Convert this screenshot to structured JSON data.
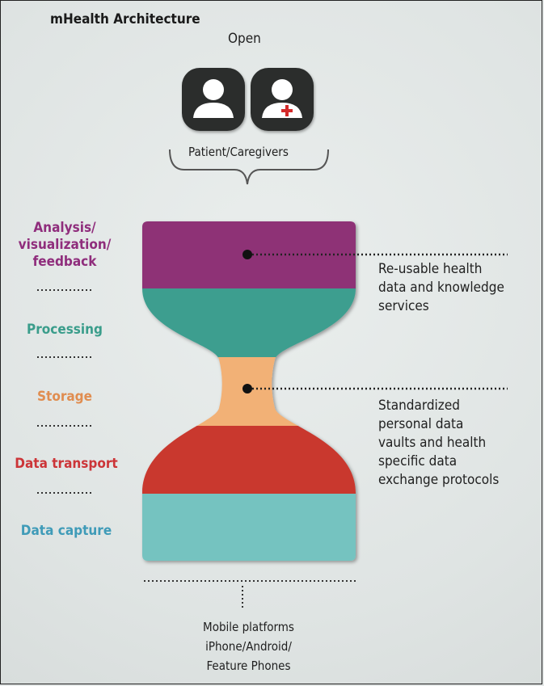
{
  "header": {
    "title": "mHealth Architecture",
    "open_label": "Open",
    "users_label": "Patient/Caregivers"
  },
  "icons": [
    "patient-icon",
    "caregiver-icon"
  ],
  "layers": [
    {
      "lines": [
        "Analysis/",
        "visualization/",
        "feedback"
      ],
      "color": "#8f2d7c"
    },
    {
      "lines": [
        "Processing"
      ],
      "color": "#3a9d8b"
    },
    {
      "lines": [
        "Storage"
      ],
      "color": "#e08d50"
    },
    {
      "lines": [
        "Data transport"
      ],
      "color": "#cc3538"
    },
    {
      "lines": [
        "Data capture"
      ],
      "color": "#3f9bb8"
    }
  ],
  "layer_fill_colors": {
    "analysis": "#8e3076",
    "processing": "#3e9e8f",
    "storage": "#f2b176",
    "transport": "#c9382e",
    "capture": "#74c3c0"
  },
  "annotations": {
    "services": [
      "Re-usable health",
      "data and knowledge",
      "services"
    ],
    "vaults": [
      "Standardized",
      "personal data",
      "vaults and health",
      "specific data",
      "exchange protocols"
    ]
  },
  "bottom": {
    "line1": "Mobile platforms",
    "line2": "iPhone/Android/",
    "line3": "Feature Phones"
  }
}
